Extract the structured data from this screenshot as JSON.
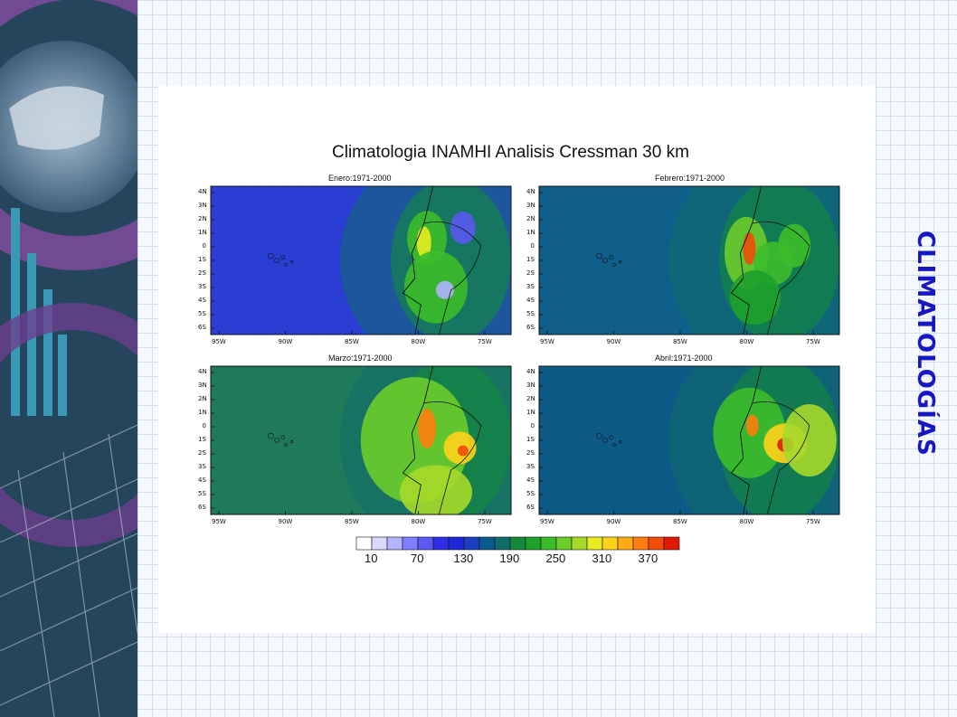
{
  "slide_title": "CLIMATOLOGÍAS",
  "figure_title": "Climatologia INAMHI Analisis Cressman 30 km",
  "chart_data": {
    "type": "heatmap",
    "title": "Climatologia INAMHI Analisis Cressman 30 km",
    "panels": [
      {
        "title": "Enero:1971-2000",
        "base": "#2a3ed4"
      },
      {
        "title": "Febrero:1971-2000",
        "base": "#0f5f8a"
      },
      {
        "title": "Marzo:1971-2000",
        "base": "#1f7a5a"
      },
      {
        "title": "Abril:1971-2000",
        "base": "#0e5a86"
      }
    ],
    "lat_ticks": [
      "4N",
      "3N",
      "2N",
      "1N",
      "0",
      "1S",
      "2S",
      "3S",
      "4S",
      "5S",
      "6S"
    ],
    "lon_ticks": [
      "95W",
      "90W",
      "85W",
      "80W",
      "75W"
    ],
    "colorbar": {
      "labels": [
        "10",
        "70",
        "130",
        "190",
        "250",
        "310",
        "370"
      ],
      "colors": [
        "#ffffff",
        "#d9d9ff",
        "#b3b3ff",
        "#8080ff",
        "#5a5af0",
        "#2e2ee6",
        "#1f28d9",
        "#1b3fbf",
        "#0d5a8f",
        "#106b6b",
        "#138a3a",
        "#1ea12a",
        "#3cbc2a",
        "#6ccc2a",
        "#a6d92a",
        "#e6ec1f",
        "#ffd21a",
        "#ffac14",
        "#ff7d10",
        "#f24b0a",
        "#e01a05"
      ]
    }
  }
}
